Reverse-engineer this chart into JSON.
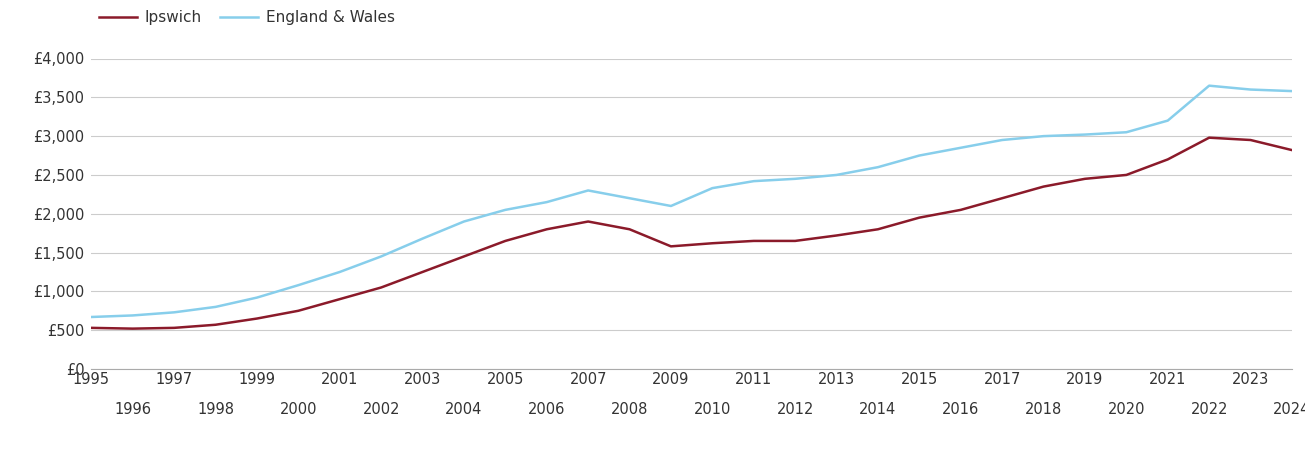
{
  "years": [
    1995,
    1996,
    1997,
    1998,
    1999,
    2000,
    2001,
    2002,
    2003,
    2004,
    2005,
    2006,
    2007,
    2008,
    2009,
    2010,
    2011,
    2012,
    2013,
    2014,
    2015,
    2016,
    2017,
    2018,
    2019,
    2020,
    2021,
    2022,
    2023,
    2024
  ],
  "ipswich": [
    530,
    520,
    530,
    570,
    650,
    750,
    900,
    1050,
    1250,
    1450,
    1650,
    1800,
    1900,
    1800,
    1580,
    1620,
    1650,
    1650,
    1720,
    1800,
    1950,
    2050,
    2200,
    2350,
    2450,
    2500,
    2700,
    2980,
    2950,
    2820
  ],
  "england_wales": [
    670,
    690,
    730,
    800,
    920,
    1080,
    1250,
    1450,
    1680,
    1900,
    2050,
    2150,
    2300,
    2200,
    2100,
    2330,
    2420,
    2450,
    2500,
    2600,
    2750,
    2850,
    2950,
    3000,
    3020,
    3050,
    3200,
    3650,
    3600,
    3580
  ],
  "ipswich_color": "#8B1A2A",
  "england_wales_color": "#87CEEB",
  "ipswich_label": "Ipswich",
  "england_wales_label": "England & Wales",
  "ylim": [
    0,
    4000
  ],
  "yticks": [
    0,
    500,
    1000,
    1500,
    2000,
    2500,
    3000,
    3500,
    4000
  ],
  "ytick_labels": [
    "£0",
    "£500",
    "£1,000",
    "£1,500",
    "£2,000",
    "£2,500",
    "£3,000",
    "£3,500",
    "£4,000"
  ],
  "odd_xticks": [
    1995,
    1997,
    1999,
    2001,
    2003,
    2005,
    2007,
    2009,
    2011,
    2013,
    2015,
    2017,
    2019,
    2021,
    2023
  ],
  "even_xticks": [
    1996,
    1998,
    2000,
    2002,
    2004,
    2006,
    2008,
    2010,
    2012,
    2014,
    2016,
    2018,
    2020,
    2022,
    2024
  ],
  "background_color": "#ffffff",
  "grid_color": "#cccccc",
  "line_width": 1.8,
  "legend_fontsize": 11,
  "tick_fontsize": 10.5,
  "xlim_left": 1995,
  "xlim_right": 2024
}
